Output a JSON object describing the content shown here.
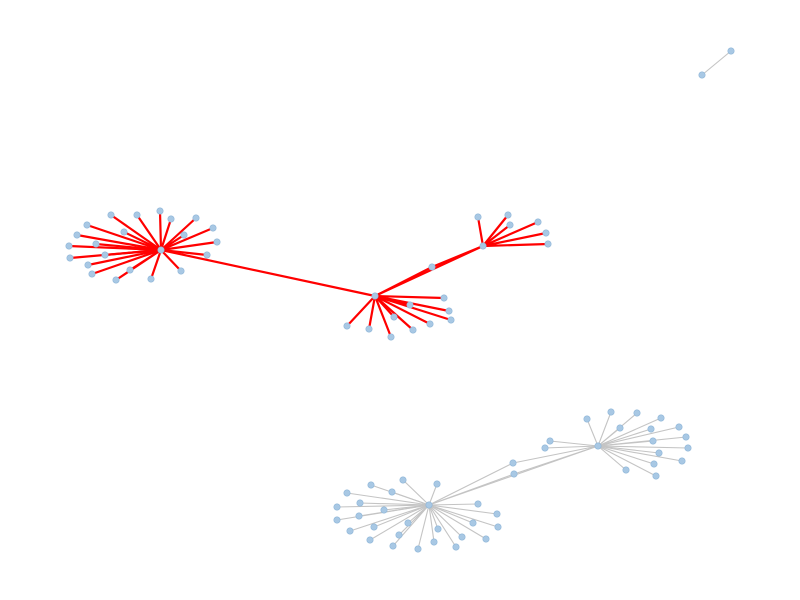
{
  "colors": {
    "background": "#ffffff",
    "node_fill": "#a8c8e4",
    "node_stroke": "#8fb6d8",
    "edge_default": "#c4c4c4",
    "edge_highlight": "#ff0000"
  }
}
